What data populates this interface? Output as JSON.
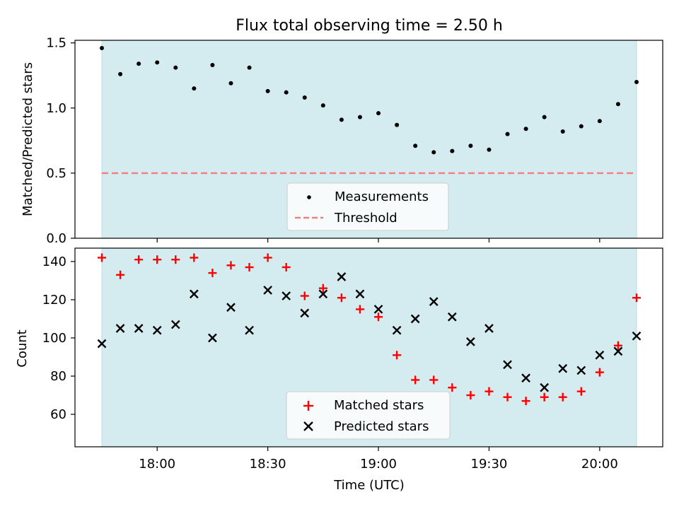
{
  "chart_data": [
    {
      "type": "scatter",
      "title": "Flux total observing time = 2.50 h",
      "ylabel": "Matched/Predicted stars",
      "ylim": [
        0,
        1.52
      ],
      "yticks": [
        0.0,
        0.5,
        1.0,
        1.5
      ],
      "ytick_labels": [
        "0.0",
        "0.5",
        "1.0",
        "1.5"
      ],
      "shaded_span": [
        "17:45",
        "20:10"
      ],
      "threshold": 0.5,
      "legend": {
        "position": "bottom-center",
        "entries": [
          "Measurements",
          "Threshold"
        ]
      },
      "series": [
        {
          "name": "Measurements",
          "marker": "dot",
          "x": [
            "17:45",
            "17:50",
            "17:55",
            "18:00",
            "18:05",
            "18:10",
            "18:15",
            "18:20",
            "18:25",
            "18:30",
            "18:35",
            "18:40",
            "18:45",
            "18:50",
            "18:55",
            "19:00",
            "19:05",
            "19:10",
            "19:15",
            "19:20",
            "19:25",
            "19:30",
            "19:35",
            "19:40",
            "19:45",
            "19:50",
            "19:55",
            "20:00",
            "20:05",
            "20:10"
          ],
          "y": [
            1.46,
            1.26,
            1.34,
            1.35,
            1.31,
            1.15,
            1.33,
            1.19,
            1.31,
            1.13,
            1.12,
            1.08,
            1.02,
            0.91,
            0.93,
            0.96,
            0.87,
            0.71,
            0.66,
            0.67,
            0.71,
            0.68,
            0.8,
            0.84,
            0.93,
            0.82,
            0.86,
            0.9,
            1.03,
            1.2
          ]
        },
        {
          "name": "Threshold",
          "style": "dashed",
          "y": 0.5
        }
      ]
    },
    {
      "type": "scatter",
      "ylabel": "Count",
      "xlabel": "Time (UTC)",
      "ylim": [
        43,
        147
      ],
      "yticks": [
        60,
        80,
        100,
        120,
        140
      ],
      "ytick_labels": [
        "60",
        "80",
        "100",
        "120",
        "140"
      ],
      "xticks": [
        "18:00",
        "18:30",
        "19:00",
        "19:30",
        "20:00"
      ],
      "shaded_span": [
        "17:45",
        "20:10"
      ],
      "legend": {
        "position": "bottom-center",
        "entries": [
          "Matched stars",
          "Predicted stars"
        ]
      },
      "series": [
        {
          "name": "Matched stars",
          "marker": "plus",
          "x": [
            "17:45",
            "17:50",
            "17:55",
            "18:00",
            "18:05",
            "18:10",
            "18:15",
            "18:20",
            "18:25",
            "18:30",
            "18:35",
            "18:40",
            "18:45",
            "18:50",
            "18:55",
            "19:00",
            "19:05",
            "19:10",
            "19:15",
            "19:20",
            "19:25",
            "19:30",
            "19:35",
            "19:40",
            "19:45",
            "19:50",
            "19:55",
            "20:00",
            "20:05",
            "20:10"
          ],
          "y": [
            142,
            133,
            141,
            141,
            141,
            142,
            134,
            138,
            137,
            142,
            137,
            122,
            126,
            121,
            115,
            111,
            91,
            78,
            78,
            74,
            70,
            72,
            69,
            67,
            69,
            69,
            72,
            82,
            96,
            121
          ]
        },
        {
          "name": "Predicted stars",
          "marker": "x",
          "x": [
            "17:45",
            "17:50",
            "17:55",
            "18:00",
            "18:05",
            "18:10",
            "18:15",
            "18:20",
            "18:25",
            "18:30",
            "18:35",
            "18:40",
            "18:45",
            "18:50",
            "18:55",
            "19:00",
            "19:05",
            "19:10",
            "19:15",
            "19:20",
            "19:25",
            "19:30",
            "19:35",
            "19:40",
            "19:45",
            "19:50",
            "19:55",
            "20:00",
            "20:05",
            "20:10"
          ],
          "y": [
            97,
            105,
            105,
            104,
            107,
            123,
            100,
            116,
            104,
            125,
            122,
            113,
            123,
            132,
            123,
            115,
            104,
            110,
            119,
            111,
            98,
            105,
            86,
            79,
            74,
            84,
            83,
            91,
            93,
            101
          ]
        }
      ]
    }
  ],
  "colors": {
    "shade": "#d4ebf0",
    "shade_edge": "#b9dce6",
    "threshold": "#f08080",
    "matched": "#ff0000",
    "predicted": "#000000",
    "measurement": "#000000"
  }
}
